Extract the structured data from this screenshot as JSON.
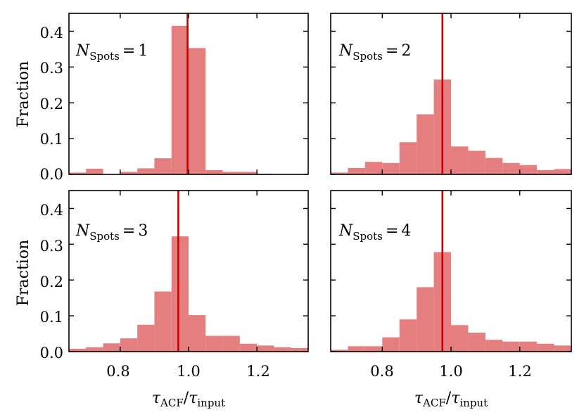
{
  "colors": {
    "bar": "#e57f7f",
    "marker_line": "#cc0000",
    "axes": "#000000"
  },
  "chart_data": [
    {
      "type": "bar",
      "panel": "top-left",
      "label_var": "N",
      "label_sub": "Spots",
      "label_eq": "=",
      "label_value": "1",
      "bin_edges": [
        0.65,
        0.7,
        0.75,
        0.8,
        0.85,
        0.9,
        0.95,
        1.0,
        1.05,
        1.1,
        1.15,
        1.2,
        1.25,
        1.3,
        1.35
      ],
      "values": [
        0.005,
        0.016,
        0.0,
        0.007,
        0.017,
        0.045,
        0.415,
        0.353,
        0.012,
        0.007,
        0.007,
        0.002,
        0.0,
        0.0
      ],
      "marker_x": 0.997,
      "xlim": [
        0.65,
        1.35
      ],
      "ylim": [
        0.0,
        0.45
      ],
      "yticks": [
        "0.0",
        "0.1",
        "0.2",
        "0.3",
        "0.4"
      ],
      "ylabel": "Fraction",
      "xlabel": ""
    },
    {
      "type": "bar",
      "panel": "top-right",
      "label_var": "N",
      "label_sub": "Spots",
      "label_eq": "=",
      "label_value": "2",
      "bin_edges": [
        0.65,
        0.7,
        0.75,
        0.8,
        0.85,
        0.9,
        0.95,
        1.0,
        1.05,
        1.1,
        1.15,
        1.2,
        1.25,
        1.3,
        1.35
      ],
      "values": [
        0.005,
        0.018,
        0.035,
        0.032,
        0.09,
        0.168,
        0.265,
        0.078,
        0.066,
        0.046,
        0.032,
        0.026,
        0.012,
        0.015
      ],
      "marker_x": 0.975,
      "xlim": [
        0.65,
        1.35
      ],
      "ylim": [
        0.0,
        0.45
      ],
      "xlabel": ""
    },
    {
      "type": "bar",
      "panel": "bottom-left",
      "label_var": "N",
      "label_sub": "Spots",
      "label_eq": "=",
      "label_value": "3",
      "bin_edges": [
        0.65,
        0.7,
        0.75,
        0.8,
        0.85,
        0.9,
        0.95,
        1.0,
        1.05,
        1.1,
        1.15,
        1.2,
        1.25,
        1.3,
        1.35
      ],
      "values": [
        0.008,
        0.012,
        0.023,
        0.037,
        0.075,
        0.168,
        0.322,
        0.102,
        0.044,
        0.044,
        0.022,
        0.017,
        0.012,
        0.01
      ],
      "marker_x": 0.97,
      "xlim": [
        0.65,
        1.35
      ],
      "ylim": [
        0.0,
        0.45
      ],
      "yticks": [
        "0.0",
        "0.1",
        "0.2",
        "0.3",
        "0.4"
      ],
      "xticks": [
        "0.8",
        "1.0",
        "1.2"
      ],
      "ylabel": "Fraction",
      "xlabel_num": "τ",
      "xlabel_num_sub": "ACF",
      "xlabel_slash": "/",
      "xlabel_den": "τ",
      "xlabel_den_sub": "input"
    },
    {
      "type": "bar",
      "panel": "bottom-right",
      "label_var": "N",
      "label_sub": "Spots",
      "label_eq": "=",
      "label_value": "4",
      "bin_edges": [
        0.65,
        0.7,
        0.75,
        0.8,
        0.85,
        0.9,
        0.95,
        1.0,
        1.05,
        1.1,
        1.15,
        1.2,
        1.25,
        1.3,
        1.35
      ],
      "values": [
        0.005,
        0.015,
        0.015,
        0.04,
        0.09,
        0.18,
        0.278,
        0.074,
        0.053,
        0.033,
        0.028,
        0.028,
        0.022,
        0.017
      ],
      "marker_x": 0.975,
      "xlim": [
        0.65,
        1.35
      ],
      "ylim": [
        0.0,
        0.45
      ],
      "xticks": [
        "0.8",
        "1.0",
        "1.2"
      ],
      "xlabel_num": "τ",
      "xlabel_num_sub": "ACF",
      "xlabel_slash": "/",
      "xlabel_den": "τ",
      "xlabel_den_sub": "input"
    }
  ]
}
